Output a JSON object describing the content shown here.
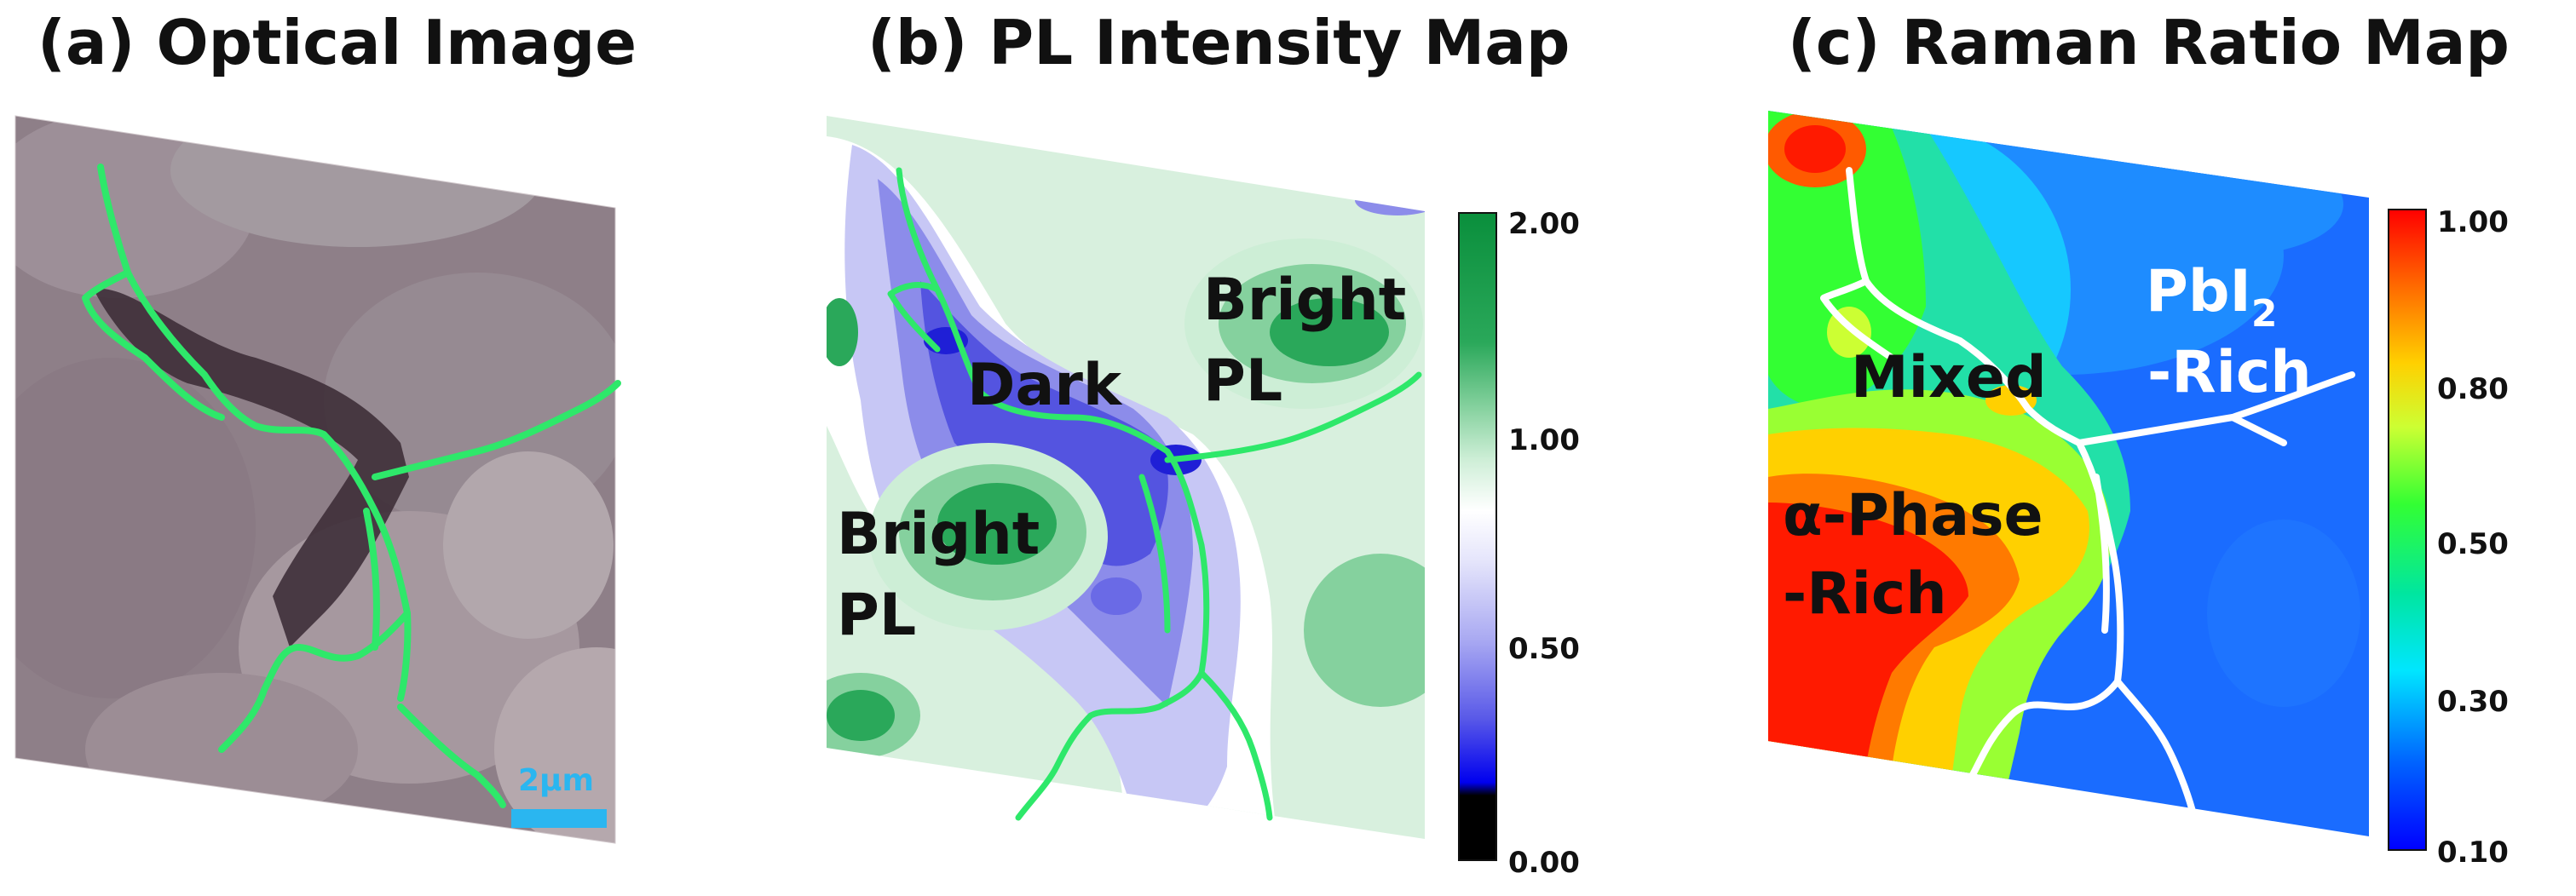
{
  "panels": [
    {
      "id": "a",
      "title": "(a) Optical Image"
    },
    {
      "id": "b",
      "title": "(b) PL Intensity Map"
    },
    {
      "id": "c",
      "title": "(c) Raman Ratio Map"
    }
  ],
  "optical": {
    "scale_bar_label": "2µm"
  },
  "pl_map": {
    "labels": {
      "dark": "Dark",
      "bright_a": "Bright",
      "pl_a": "PL",
      "bright_b": "Bright",
      "pl_b": "PL"
    },
    "colorbar": {
      "ticks": [
        "2.00",
        "1.00",
        "0.50",
        "0.00"
      ]
    }
  },
  "raman_map": {
    "labels": {
      "mixed": "Mixed",
      "pbi_base": "PbI",
      "pbi_sub": "2",
      "pbi_rich": "-Rich",
      "alpha_phase": "α-Phase",
      "alpha_rich": "-Rich"
    },
    "colorbar": {
      "ticks": [
        "1.00",
        "0.80",
        "0.50",
        "0.30",
        "0.10"
      ]
    }
  },
  "colors": {
    "grain_boundary": "#2ee86a",
    "raman_boundary": "#ffffff",
    "scale_bar": "#2ab6f0"
  }
}
